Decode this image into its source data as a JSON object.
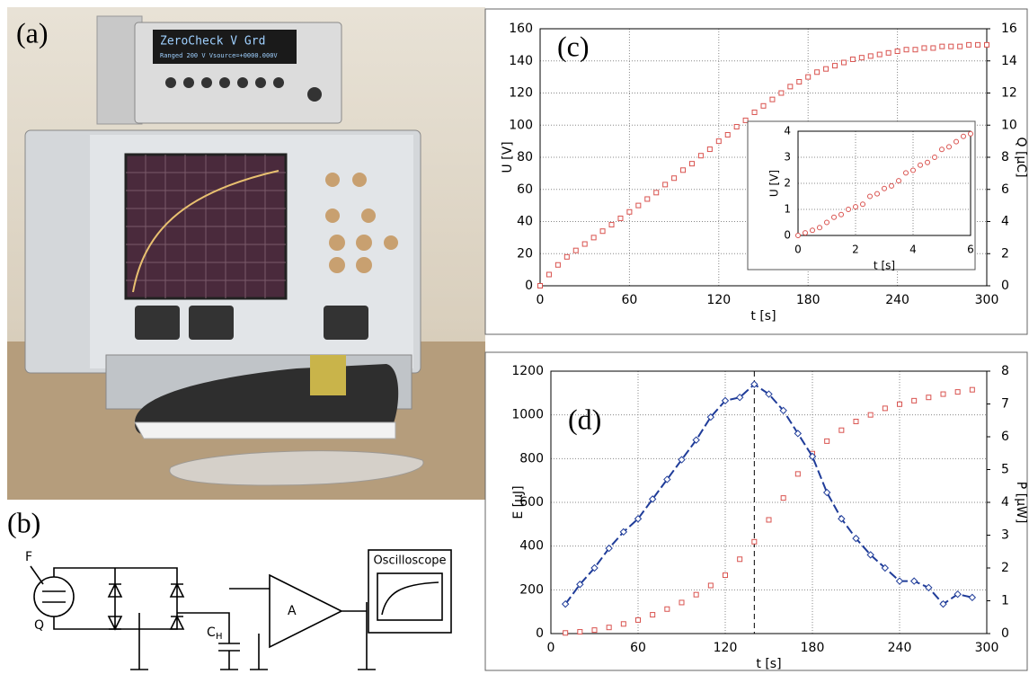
{
  "panel_labels": {
    "a": "(a)",
    "b": "(b)"
  },
  "photo": {
    "display_lines": [
      "ZeroCheck  V  Grd",
      "Ranged 200 V  Vsource=+0000.000V"
    ]
  },
  "circuit": {
    "force": "F",
    "charge": "Q",
    "capacitor": "C",
    "capacitor_sub": "H",
    "amplifier": "A",
    "scope": "Oscilloscope"
  },
  "chart_data": [
    {
      "type": "scatter",
      "panel_label": "(c)",
      "xlabel": "t [s]",
      "ylabel": "U [V]",
      "y2label": "Q [μC]",
      "x": [
        0,
        6,
        12,
        18,
        24,
        30,
        36,
        42,
        48,
        54,
        60,
        66,
        72,
        78,
        84,
        90,
        96,
        102,
        108,
        114,
        120,
        126,
        132,
        138,
        144,
        150,
        156,
        162,
        168,
        174,
        180,
        186,
        192,
        198,
        204,
        210,
        216,
        222,
        228,
        234,
        240,
        246,
        252,
        258,
        264,
        270,
        276,
        282,
        288,
        294,
        300
      ],
      "series": [
        {
          "color": "#d9534f",
          "marker": "square",
          "values": [
            0,
            7,
            13,
            18,
            22,
            26,
            30,
            34,
            38,
            42,
            46,
            50,
            54,
            58,
            63,
            67,
            72,
            76,
            81,
            85,
            90,
            94,
            99,
            103,
            108,
            112,
            116,
            120,
            124,
            127,
            130,
            133,
            135,
            137,
            139,
            141,
            142,
            143,
            144,
            145,
            146,
            147,
            147,
            148,
            148,
            149,
            149,
            149,
            150,
            150,
            150
          ]
        }
      ],
      "xlim": [
        0,
        300
      ],
      "xticks": [
        0,
        60,
        120,
        180,
        240,
        300
      ],
      "ylim": [
        0,
        160
      ],
      "yticks": [
        0,
        20,
        40,
        60,
        80,
        100,
        120,
        140,
        160
      ],
      "y2lim": [
        0,
        16
      ],
      "y2ticks": [
        0,
        2,
        4,
        6,
        8,
        10,
        12,
        14,
        16
      ],
      "grid": true
    },
    {
      "type": "scatter",
      "xlabel": "t [s]",
      "ylabel": "U [V]",
      "x": [
        0,
        0.25,
        0.5,
        0.75,
        1,
        1.25,
        1.5,
        1.75,
        2,
        2.25,
        2.5,
        2.75,
        3,
        3.25,
        3.5,
        3.75,
        4,
        4.25,
        4.5,
        4.75,
        5,
        5.25,
        5.5,
        5.75,
        6
      ],
      "series": [
        {
          "color": "#d9534f",
          "marker": "circle",
          "values": [
            0,
            0.1,
            0.2,
            0.3,
            0.5,
            0.7,
            0.8,
            1.0,
            1.1,
            1.2,
            1.5,
            1.6,
            1.8,
            1.9,
            2.1,
            2.4,
            2.5,
            2.7,
            2.8,
            3.0,
            3.3,
            3.4,
            3.6,
            3.8,
            3.9
          ]
        }
      ],
      "xlim": [
        0,
        6
      ],
      "xticks": [
        0,
        2,
        4,
        6
      ],
      "ylim": [
        0,
        4
      ],
      "yticks": [
        0,
        1,
        2,
        3,
        4
      ],
      "grid": true
    },
    {
      "type": "scatter",
      "panel_label": "(d)",
      "xlabel": "t [s]",
      "ylabel": "E [μJ]",
      "y2label": "P [μW]",
      "x": [
        10,
        20,
        30,
        40,
        50,
        60,
        70,
        80,
        90,
        100,
        110,
        120,
        130,
        140,
        150,
        160,
        170,
        180,
        190,
        200,
        210,
        220,
        230,
        240,
        250,
        260,
        270,
        280,
        290
      ],
      "series": [
        {
          "color": "#d9534f",
          "marker": "square",
          "values": [
            3,
            8,
            16,
            28,
            44,
            62,
            86,
            112,
            142,
            178,
            220,
            267,
            340,
            420,
            520,
            620,
            730,
            823,
            880,
            930,
            970,
            1000,
            1030,
            1049,
            1065,
            1080,
            1095,
            1105,
            1115
          ]
        },
        {
          "color": "#1f3c99",
          "marker": "diamond",
          "line": "dashed",
          "axis": "y2",
          "values": [
            0.9,
            1.5,
            2.0,
            2.6,
            3.1,
            3.5,
            4.1,
            4.7,
            5.3,
            5.9,
            6.6,
            7.1,
            7.2,
            7.6,
            7.3,
            6.8,
            6.1,
            5.4,
            4.3,
            3.5,
            2.9,
            2.4,
            2.0,
            1.6,
            1.6,
            1.4,
            0.9,
            1.2,
            1.1
          ]
        }
      ],
      "xlim": [
        0,
        300
      ],
      "xticks": [
        0,
        60,
        120,
        180,
        240,
        300
      ],
      "ylim": [
        0,
        1200
      ],
      "yticks": [
        0,
        200,
        400,
        600,
        800,
        1000,
        1200
      ],
      "y2lim": [
        0,
        8
      ],
      "y2ticks": [
        0,
        1,
        2,
        3,
        4,
        5,
        6,
        7,
        8
      ],
      "grid": true,
      "vline": 140
    }
  ]
}
